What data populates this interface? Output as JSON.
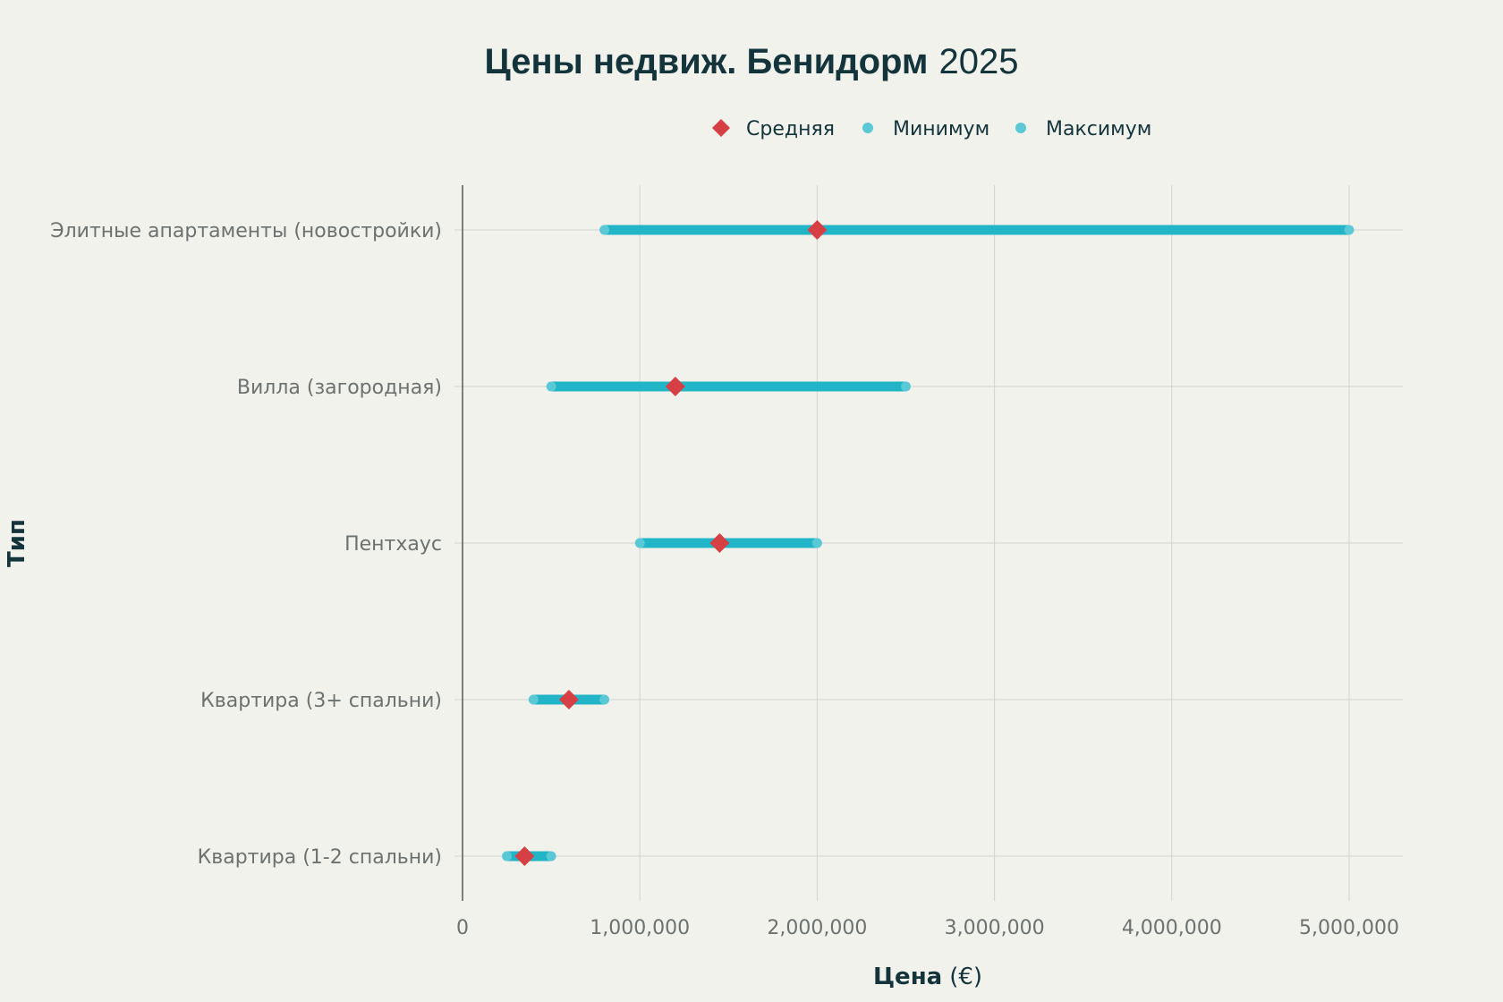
{
  "chart_data": {
    "type": "dumbbell",
    "title_bold": "Цены недвиж. Бенидорм",
    "title_rest": "2025",
    "xlabel_bold": "Цена",
    "xlabel_rest": "(€)",
    "ylabel": "Тип",
    "xlim": [
      0,
      5300000
    ],
    "x_ticks": [
      0,
      1000000,
      2000000,
      3000000,
      4000000,
      5000000
    ],
    "x_tick_labels": [
      "0",
      "1,000,000",
      "2,000,000",
      "3,000,000",
      "4,000,000",
      "5,000,000"
    ],
    "grid": true,
    "legend_position": "top-right",
    "legend": [
      {
        "name": "Средняя",
        "marker": "diamond",
        "color": "#d64045"
      },
      {
        "name": "Минимум",
        "marker": "circle",
        "color": "#5bc8d6"
      },
      {
        "name": "Максимум",
        "marker": "circle",
        "color": "#5bc8d6"
      }
    ],
    "colors": {
      "range": "#22b5c8",
      "endpoint": "#5bc8d6",
      "average": "#d64045",
      "title": "#13343b",
      "axis_text": "#6b7270",
      "grid": "#d2d4cf"
    },
    "categories": [
      "Квартира (1-2 спальни)",
      "Квартира (3+ спальни)",
      "Пентхаус",
      "Вилла (загородная)",
      "Элитные апартаменты (новостройки)"
    ],
    "series": [
      {
        "name": "Минимум",
        "values": [
          250000,
          400000,
          1000000,
          500000,
          800000
        ]
      },
      {
        "name": "Средняя",
        "values": [
          350000,
          600000,
          1450000,
          1200000,
          2000000
        ]
      },
      {
        "name": "Максимум",
        "values": [
          500000,
          800000,
          2000000,
          2500000,
          5000000
        ]
      }
    ]
  }
}
